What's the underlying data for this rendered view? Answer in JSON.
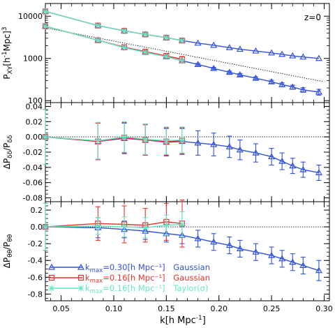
{
  "chart_data": [
    {
      "type": "line",
      "panel": "top",
      "ylabel": "P_XY[h^-1 Mpc]^3",
      "annotation": "z=0",
      "xlim": [
        0.035,
        0.305
      ],
      "ylim": [
        90,
        20000
      ],
      "yscale": "log",
      "yticks": [
        100,
        1000,
        10000
      ],
      "yticklabels": [
        "100",
        "1000",
        "10000"
      ],
      "reference_line": {
        "style": "dotted",
        "x": [
          0.035,
          0.3
        ],
        "y": [
          5300,
          280
        ]
      },
      "series": [
        {
          "key": "blue",
          "x": [
            0.035,
            0.085,
            0.11,
            0.13,
            0.15,
            0.165,
            0.18,
            0.195,
            0.21,
            0.22,
            0.235,
            0.25,
            0.26,
            0.27,
            0.28,
            0.295
          ],
          "y": [
            5800,
            2700,
            1800,
            1400,
            1100,
            880,
            720,
            580,
            470,
            410,
            340,
            280,
            240,
            210,
            180,
            160
          ],
          "err": [
            0,
            0,
            0,
            0,
            0,
            0,
            40,
            35,
            30,
            28,
            26,
            24,
            24,
            22,
            22,
            25
          ]
        },
        {
          "key": "blue_upper",
          "x": [
            0.035,
            0.085,
            0.11,
            0.13,
            0.15,
            0.165,
            0.18,
            0.195,
            0.21,
            0.22,
            0.235,
            0.25,
            0.26,
            0.27,
            0.28,
            0.295
          ],
          "y": [
            13000,
            6000,
            4500,
            3700,
            3100,
            2650,
            2300,
            2050,
            1800,
            1650,
            1500,
            1350,
            1250,
            1150,
            1080,
            1000
          ]
        },
        {
          "key": "red",
          "x": [
            0.035,
            0.085,
            0.11,
            0.13,
            0.15,
            0.165
          ],
          "y": [
            5800,
            2700,
            1850,
            1450,
            1150,
            950
          ],
          "err": [
            0,
            0,
            0,
            120,
            140,
            160
          ]
        },
        {
          "key": "red_upper",
          "x": [
            0.035,
            0.085,
            0.11,
            0.13,
            0.15,
            0.165
          ],
          "y": [
            13000,
            6000,
            4500,
            3700,
            3100,
            2650
          ]
        },
        {
          "key": "cyan",
          "x": [
            0.035,
            0.085,
            0.11,
            0.13,
            0.15,
            0.165
          ],
          "y": [
            5800,
            2700,
            1800,
            1400,
            1100,
            880
          ]
        },
        {
          "key": "cyan_upper",
          "x": [
            0.035,
            0.085,
            0.11,
            0.13,
            0.15,
            0.165
          ],
          "y": [
            13000,
            6000,
            4500,
            3700,
            3100,
            2650
          ]
        }
      ]
    },
    {
      "type": "line",
      "panel": "middle",
      "ylabel": "ΔP_δδ/P_δδ",
      "xlim": [
        0.035,
        0.305
      ],
      "ylim": [
        -0.085,
        0.045
      ],
      "yticks": [
        -0.08,
        -0.06,
        -0.04,
        -0.02,
        0.0,
        0.02,
        0.04
      ],
      "yticklabels": [
        "-0.08",
        "-0.06",
        "-0.04",
        "-0.02",
        "0.00",
        "0.02",
        "0.04"
      ],
      "reference_line": {
        "style": "dotted",
        "y": 0.0
      },
      "series": [
        {
          "key": "blue",
          "x": [
            0.035,
            0.085,
            0.11,
            0.13,
            0.15,
            0.165,
            0.18,
            0.195,
            0.21,
            0.22,
            0.235,
            0.25,
            0.26,
            0.27,
            0.28,
            0.295
          ],
          "y": [
            0.0,
            -0.006,
            -0.002,
            -0.004,
            -0.007,
            -0.006,
            -0.008,
            -0.01,
            -0.013,
            -0.017,
            -0.021,
            -0.026,
            -0.032,
            -0.038,
            -0.043,
            -0.047
          ],
          "err": [
            0.036,
            0.024,
            0.02,
            0.02,
            0.018,
            0.017,
            0.016,
            0.015,
            0.014,
            0.013,
            0.012,
            0.011,
            0.011,
            0.01,
            0.01,
            0.01
          ]
        },
        {
          "key": "red",
          "x": [
            0.035,
            0.085,
            0.11,
            0.13,
            0.15,
            0.165
          ],
          "y": [
            0.0,
            -0.006,
            -0.001,
            -0.004,
            -0.006,
            -0.005
          ],
          "err": [
            0.036,
            0.024,
            0.02,
            0.02,
            0.018,
            0.017
          ]
        },
        {
          "key": "cyan",
          "x": [
            0.035,
            0.085,
            0.11,
            0.13,
            0.15,
            0.165
          ],
          "y": [
            0.0,
            -0.005,
            0.0,
            -0.003,
            -0.005,
            -0.004
          ],
          "err": [
            0.036,
            0.024,
            0.02,
            0.02,
            0.018,
            0.017
          ]
        }
      ]
    },
    {
      "type": "line",
      "panel": "bottom",
      "ylabel": "ΔP_θθ/P_θθ",
      "xlabel": "k[h Mpc^-1]",
      "xlim": [
        0.035,
        0.305
      ],
      "ylim": [
        -0.88,
        0.3
      ],
      "xticks": [
        0.05,
        0.1,
        0.15,
        0.2,
        0.25,
        0.3
      ],
      "xticklabels": [
        "0.05",
        "0.10",
        "0.15",
        "0.20",
        "0.25",
        "0.30"
      ],
      "yticks": [
        -0.8,
        -0.6,
        -0.4,
        -0.2,
        0.0,
        0.2
      ],
      "yticklabels": [
        "-0.8",
        "-0.6",
        "-0.4",
        "-0.2",
        "0.0",
        "0.2"
      ],
      "reference_line": {
        "style": "dotted",
        "y": 0.0
      },
      "legend": [
        {
          "key": "blue",
          "kmax_value": "=0.30",
          "units": "[h Mpc⁻¹]",
          "model": "Gaussian"
        },
        {
          "key": "red",
          "kmax_value": "=0.16",
          "units": "[h Mpc⁻¹]",
          "model": "Gaussian"
        },
        {
          "key": "cyan",
          "kmax_value": "=0.16",
          "units": "[h Mpc⁻¹]",
          "model": "Taylor(σ)"
        }
      ],
      "series": [
        {
          "key": "blue",
          "x": [
            0.035,
            0.085,
            0.11,
            0.13,
            0.15,
            0.165,
            0.18,
            0.195,
            0.21,
            0.22,
            0.235,
            0.25,
            0.26,
            0.27,
            0.28,
            0.295
          ],
          "y": [
            0.0,
            -0.01,
            -0.03,
            -0.05,
            -0.08,
            -0.1,
            -0.14,
            -0.18,
            -0.22,
            -0.26,
            -0.3,
            -0.34,
            -0.38,
            -0.42,
            -0.46,
            -0.52
          ],
          "err": [
            0.28,
            0.12,
            0.1,
            0.1,
            0.1,
            0.1,
            0.1,
            0.1,
            0.1,
            0.1,
            0.1,
            0.1,
            0.1,
            0.1,
            0.1,
            0.12
          ]
        },
        {
          "key": "red",
          "x": [
            0.035,
            0.085,
            0.11,
            0.13,
            0.15,
            0.165
          ],
          "y": [
            0.0,
            0.04,
            0.03,
            0.02,
            0.06,
            0.04
          ],
          "err": [
            0.28,
            0.2,
            0.22,
            0.2,
            0.22,
            0.28
          ]
        },
        {
          "key": "cyan",
          "x": [
            0.035,
            0.085,
            0.11,
            0.13,
            0.15,
            0.165
          ],
          "y": [
            0.0,
            0.01,
            0.0,
            -0.01,
            0.02,
            0.03
          ],
          "err": [
            0.28,
            0.1,
            0.12,
            0.12,
            0.12,
            0.15
          ]
        }
      ]
    }
  ],
  "colors": {
    "blue": "#3050e0",
    "red": "#e8322c",
    "cyan": "#64e6c3",
    "axis": "#000000"
  }
}
